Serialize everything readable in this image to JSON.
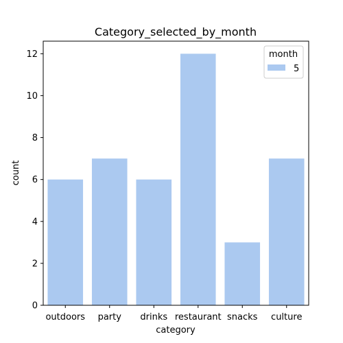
{
  "chart_data": {
    "type": "bar",
    "title": "Category_selected_by_month",
    "xlabel": "category",
    "ylabel": "count",
    "categories": [
      "outdoors",
      "party",
      "drinks",
      "restaurant",
      "snacks",
      "culture"
    ],
    "series": [
      {
        "name": "5",
        "values": [
          6,
          7,
          6,
          12,
          3,
          7
        ],
        "color": "#abc9f0"
      }
    ],
    "ylim": [
      0,
      12.6
    ],
    "yticks": [
      0,
      2,
      4,
      6,
      8,
      10,
      12
    ],
    "grid": false,
    "legend": {
      "title": "month",
      "position": "top-right"
    }
  }
}
